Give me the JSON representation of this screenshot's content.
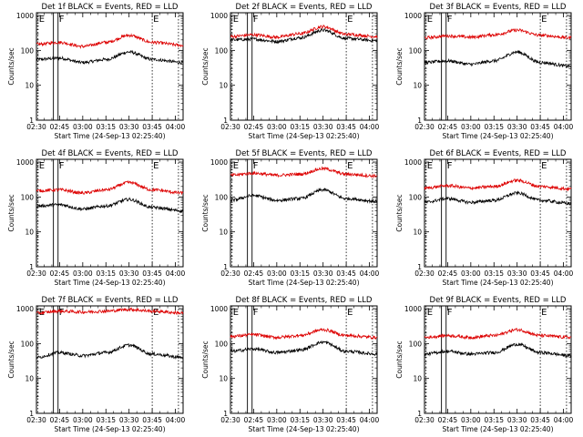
{
  "chart_data": [
    {
      "type": "line",
      "title": "Det 1f BLACK = Events, RED = LLD",
      "xlabel": "Start Time (24-Sep-13 02:25:40)",
      "ylabel": "Counts/sec",
      "x_ticks": [
        "02:30",
        "02:45",
        "03:00",
        "03:15",
        "03:30",
        "03:45",
        "04:00"
      ],
      "y_ticks": [
        "1",
        "10",
        "100",
        "1000"
      ],
      "y_scale": "log",
      "ylim": [
        1,
        1200
      ],
      "xlim": [
        "02:30",
        "04:05"
      ],
      "vertical_markers": [
        {
          "time": "02:31",
          "label": "E"
        },
        {
          "time": "02:41",
          "label": ""
        },
        {
          "time": "02:44",
          "label": "F"
        },
        {
          "time": "03:45",
          "label": "E"
        },
        {
          "time": "04:02",
          "label": ""
        }
      ],
      "series": [
        {
          "color": "#000000",
          "points": [
            [
              "02:30",
              55
            ],
            [
              "02:45",
              60
            ],
            [
              "03:00",
              45
            ],
            [
              "03:15",
              55
            ],
            [
              "03:30",
              90
            ],
            [
              "03:45",
              55
            ],
            [
              "04:05",
              45
            ]
          ]
        },
        {
          "color": "#dd0000",
          "points": [
            [
              "02:30",
              150
            ],
            [
              "02:45",
              170
            ],
            [
              "03:00",
              130
            ],
            [
              "03:15",
              170
            ],
            [
              "03:30",
              270
            ],
            [
              "03:45",
              170
            ],
            [
              "04:05",
              140
            ]
          ]
        }
      ]
    },
    {
      "type": "line",
      "title": "Det 2f BLACK = Events, RED = LLD",
      "xlabel": "Start Time (24-Sep-13 02:25:40)",
      "ylabel": "Counts/sec",
      "x_ticks": [
        "02:30",
        "02:45",
        "03:00",
        "03:15",
        "03:30",
        "03:45",
        "04:00"
      ],
      "y_ticks": [
        "1",
        "10",
        "100",
        "1000"
      ],
      "y_scale": "log",
      "ylim": [
        1,
        1200
      ],
      "xlim": [
        "02:30",
        "04:05"
      ],
      "vertical_markers": [
        {
          "time": "02:31",
          "label": "E"
        },
        {
          "time": "02:41",
          "label": ""
        },
        {
          "time": "02:44",
          "label": "F"
        },
        {
          "time": "03:45",
          "label": "E"
        },
        {
          "time": "04:02",
          "label": ""
        }
      ],
      "series": [
        {
          "color": "#000000",
          "points": [
            [
              "02:30",
              200
            ],
            [
              "02:45",
              210
            ],
            [
              "03:00",
              180
            ],
            [
              "03:15",
              230
            ],
            [
              "03:30",
              380
            ],
            [
              "03:45",
              220
            ],
            [
              "04:05",
              190
            ]
          ]
        },
        {
          "color": "#dd0000",
          "points": [
            [
              "02:30",
              250
            ],
            [
              "02:45",
              280
            ],
            [
              "03:00",
              240
            ],
            [
              "03:15",
              300
            ],
            [
              "03:30",
              480
            ],
            [
              "03:45",
              290
            ],
            [
              "04:05",
              250
            ]
          ]
        }
      ]
    },
    {
      "type": "line",
      "title": "Det 3f BLACK = Events, RED = LLD",
      "xlabel": "Start Time (24-Sep-13 02:25:40)",
      "ylabel": "Counts/sec",
      "x_ticks": [
        "02:30",
        "02:45",
        "03:00",
        "03:15",
        "03:30",
        "03:45",
        "04:00"
      ],
      "y_ticks": [
        "1",
        "10",
        "100",
        "1000"
      ],
      "y_scale": "log",
      "ylim": [
        1,
        1200
      ],
      "xlim": [
        "02:30",
        "04:05"
      ],
      "vertical_markers": [
        {
          "time": "02:31",
          "label": "E"
        },
        {
          "time": "02:41",
          "label": ""
        },
        {
          "time": "02:44",
          "label": "F"
        },
        {
          "time": "03:45",
          "label": "E"
        },
        {
          "time": "04:02",
          "label": ""
        }
      ],
      "series": [
        {
          "color": "#000000",
          "points": [
            [
              "02:30",
              45
            ],
            [
              "02:45",
              50
            ],
            [
              "03:00",
              40
            ],
            [
              "03:15",
              50
            ],
            [
              "03:30",
              90
            ],
            [
              "03:45",
              45
            ],
            [
              "04:05",
              35
            ]
          ]
        },
        {
          "color": "#dd0000",
          "points": [
            [
              "02:30",
              230
            ],
            [
              "02:45",
              260
            ],
            [
              "03:00",
              240
            ],
            [
              "03:15",
              280
            ],
            [
              "03:30",
              380
            ],
            [
              "03:45",
              270
            ],
            [
              "04:05",
              230
            ]
          ]
        }
      ]
    },
    {
      "type": "line",
      "title": "Det 4f BLACK = Events, RED = LLD",
      "xlabel": "Start Time (24-Sep-13 02:25:40)",
      "ylabel": "Counts/sec",
      "x_ticks": [
        "02:30",
        "02:45",
        "03:00",
        "03:15",
        "03:30",
        "03:45",
        "04:00"
      ],
      "y_ticks": [
        "1",
        "10",
        "100",
        "1000"
      ],
      "y_scale": "log",
      "ylim": [
        1,
        1200
      ],
      "xlim": [
        "02:30",
        "04:05"
      ],
      "vertical_markers": [
        {
          "time": "02:31",
          "label": "E"
        },
        {
          "time": "02:41",
          "label": ""
        },
        {
          "time": "02:44",
          "label": "F"
        },
        {
          "time": "03:45",
          "label": "E"
        },
        {
          "time": "04:02",
          "label": ""
        }
      ],
      "series": [
        {
          "color": "#000000",
          "points": [
            [
              "02:30",
              55
            ],
            [
              "02:45",
              60
            ],
            [
              "03:00",
              45
            ],
            [
              "03:15",
              55
            ],
            [
              "03:30",
              85
            ],
            [
              "03:45",
              50
            ],
            [
              "04:05",
              40
            ]
          ]
        },
        {
          "color": "#dd0000",
          "points": [
            [
              "02:30",
              150
            ],
            [
              "02:45",
              160
            ],
            [
              "03:00",
              130
            ],
            [
              "03:15",
              160
            ],
            [
              "03:30",
              260
            ],
            [
              "03:45",
              160
            ],
            [
              "04:05",
              130
            ]
          ]
        }
      ]
    },
    {
      "type": "line",
      "title": "Det 5f BLACK = Events, RED = LLD",
      "xlabel": "Start Time (24-Sep-13 02:25:40)",
      "ylabel": "Counts/sec",
      "x_ticks": [
        "02:30",
        "02:45",
        "03:00",
        "03:15",
        "03:30",
        "03:45",
        "04:00"
      ],
      "y_ticks": [
        "1",
        "10",
        "100",
        "1000"
      ],
      "y_scale": "log",
      "ylim": [
        1,
        1200
      ],
      "xlim": [
        "02:30",
        "04:05"
      ],
      "vertical_markers": [
        {
          "time": "02:31",
          "label": "E"
        },
        {
          "time": "02:41",
          "label": ""
        },
        {
          "time": "02:44",
          "label": "F"
        },
        {
          "time": "03:45",
          "label": "E"
        },
        {
          "time": "04:02",
          "label": ""
        }
      ],
      "series": [
        {
          "color": "#000000",
          "points": [
            [
              "02:30",
              80
            ],
            [
              "02:45",
              110
            ],
            [
              "03:00",
              80
            ],
            [
              "03:15",
              90
            ],
            [
              "03:30",
              160
            ],
            [
              "03:45",
              90
            ],
            [
              "04:05",
              75
            ]
          ]
        },
        {
          "color": "#dd0000",
          "points": [
            [
              "02:30",
              420
            ],
            [
              "02:45",
              480
            ],
            [
              "03:00",
              420
            ],
            [
              "03:15",
              450
            ],
            [
              "03:30",
              650
            ],
            [
              "03:45",
              450
            ],
            [
              "04:05",
              400
            ]
          ]
        }
      ]
    },
    {
      "type": "line",
      "title": "Det 6f BLACK = Events, RED = LLD",
      "xlabel": "Start Time (24-Sep-13 02:25:40)",
      "ylabel": "Counts/sec",
      "x_ticks": [
        "02:30",
        "02:45",
        "03:00",
        "03:15",
        "03:30",
        "03:45",
        "04:00"
      ],
      "y_ticks": [
        "1",
        "10",
        "100",
        "1000"
      ],
      "y_scale": "log",
      "ylim": [
        1,
        1200
      ],
      "xlim": [
        "02:30",
        "04:05"
      ],
      "vertical_markers": [
        {
          "time": "02:31",
          "label": "E"
        },
        {
          "time": "02:41",
          "label": ""
        },
        {
          "time": "02:44",
          "label": "F"
        },
        {
          "time": "03:45",
          "label": "E"
        },
        {
          "time": "04:02",
          "label": ""
        }
      ],
      "series": [
        {
          "color": "#000000",
          "points": [
            [
              "02:30",
              70
            ],
            [
              "02:45",
              90
            ],
            [
              "03:00",
              70
            ],
            [
              "03:15",
              80
            ],
            [
              "03:30",
              130
            ],
            [
              "03:45",
              80
            ],
            [
              "04:05",
              65
            ]
          ]
        },
        {
          "color": "#dd0000",
          "points": [
            [
              "02:30",
              180
            ],
            [
              "02:45",
              210
            ],
            [
              "03:00",
              180
            ],
            [
              "03:15",
              200
            ],
            [
              "03:30",
              300
            ],
            [
              "03:45",
              200
            ],
            [
              "04:05",
              170
            ]
          ]
        }
      ]
    },
    {
      "type": "line",
      "title": "Det 7f BLACK = Events, RED = LLD",
      "xlabel": "Start Time (24-Sep-13 02:25:40)",
      "ylabel": "Counts/sec",
      "x_ticks": [
        "02:30",
        "02:45",
        "03:00",
        "03:15",
        "03:30",
        "03:45",
        "04:00"
      ],
      "y_ticks": [
        "1",
        "10",
        "100",
        "1000"
      ],
      "y_scale": "log",
      "ylim": [
        1,
        1200
      ],
      "xlim": [
        "02:30",
        "04:05"
      ],
      "vertical_markers": [
        {
          "time": "02:31",
          "label": "E"
        },
        {
          "time": "02:41",
          "label": ""
        },
        {
          "time": "02:44",
          "label": "F"
        },
        {
          "time": "03:45",
          "label": "E"
        },
        {
          "time": "04:02",
          "label": ""
        }
      ],
      "series": [
        {
          "color": "#000000",
          "points": [
            [
              "02:30",
              40
            ],
            [
              "02:45",
              55
            ],
            [
              "03:00",
              45
            ],
            [
              "03:15",
              55
            ],
            [
              "03:30",
              90
            ],
            [
              "03:45",
              50
            ],
            [
              "04:05",
              40
            ]
          ]
        },
        {
          "color": "#dd0000",
          "points": [
            [
              "02:30",
              750
            ],
            [
              "02:45",
              850
            ],
            [
              "03:00",
              800
            ],
            [
              "03:15",
              850
            ],
            [
              "03:30",
              950
            ],
            [
              "03:45",
              850
            ],
            [
              "04:05",
              750
            ]
          ]
        }
      ]
    },
    {
      "type": "line",
      "title": "Det 8f BLACK = Events, RED = LLD",
      "xlabel": "Start Time (24-Sep-13 02:25:40)",
      "ylabel": "Counts/sec",
      "x_ticks": [
        "02:30",
        "02:45",
        "03:00",
        "03:15",
        "03:30",
        "03:45",
        "04:00"
      ],
      "y_ticks": [
        "1",
        "10",
        "100",
        "1000"
      ],
      "y_scale": "log",
      "ylim": [
        1,
        1200
      ],
      "xlim": [
        "02:30",
        "04:05"
      ],
      "vertical_markers": [
        {
          "time": "02:31",
          "label": "E"
        },
        {
          "time": "02:41",
          "label": ""
        },
        {
          "time": "02:44",
          "label": "F"
        },
        {
          "time": "03:45",
          "label": "E"
        },
        {
          "time": "04:02",
          "label": ""
        }
      ],
      "series": [
        {
          "color": "#000000",
          "points": [
            [
              "02:30",
              60
            ],
            [
              "02:45",
              70
            ],
            [
              "03:00",
              55
            ],
            [
              "03:15",
              65
            ],
            [
              "03:30",
              110
            ],
            [
              "03:45",
              60
            ],
            [
              "04:05",
              50
            ]
          ]
        },
        {
          "color": "#dd0000",
          "points": [
            [
              "02:30",
              160
            ],
            [
              "02:45",
              180
            ],
            [
              "03:00",
              150
            ],
            [
              "03:15",
              170
            ],
            [
              "03:30",
              250
            ],
            [
              "03:45",
              170
            ],
            [
              "04:05",
              150
            ]
          ]
        }
      ]
    },
    {
      "type": "line",
      "title": "Det 9f BLACK = Events, RED = LLD",
      "xlabel": "Start Time (24-Sep-13 02:25:40)",
      "ylabel": "Counts/sec",
      "x_ticks": [
        "02:30",
        "02:45",
        "03:00",
        "03:15",
        "03:30",
        "03:45",
        "04:00"
      ],
      "y_ticks": [
        "1",
        "10",
        "100",
        "1000"
      ],
      "y_scale": "log",
      "ylim": [
        1,
        1200
      ],
      "xlim": [
        "02:30",
        "04:05"
      ],
      "vertical_markers": [
        {
          "time": "02:31",
          "label": "E"
        },
        {
          "time": "02:41",
          "label": ""
        },
        {
          "time": "02:44",
          "label": "F"
        },
        {
          "time": "03:45",
          "label": "E"
        },
        {
          "time": "04:02",
          "label": ""
        }
      ],
      "series": [
        {
          "color": "#000000",
          "points": [
            [
              "02:30",
              50
            ],
            [
              "02:45",
              60
            ],
            [
              "03:00",
              50
            ],
            [
              "03:15",
              55
            ],
            [
              "03:30",
              95
            ],
            [
              "03:45",
              55
            ],
            [
              "04:05",
              45
            ]
          ]
        },
        {
          "color": "#dd0000",
          "points": [
            [
              "02:30",
              150
            ],
            [
              "02:45",
              170
            ],
            [
              "03:00",
              150
            ],
            [
              "03:15",
              170
            ],
            [
              "03:30",
              250
            ],
            [
              "03:45",
              170
            ],
            [
              "04:05",
              150
            ]
          ]
        }
      ]
    }
  ]
}
